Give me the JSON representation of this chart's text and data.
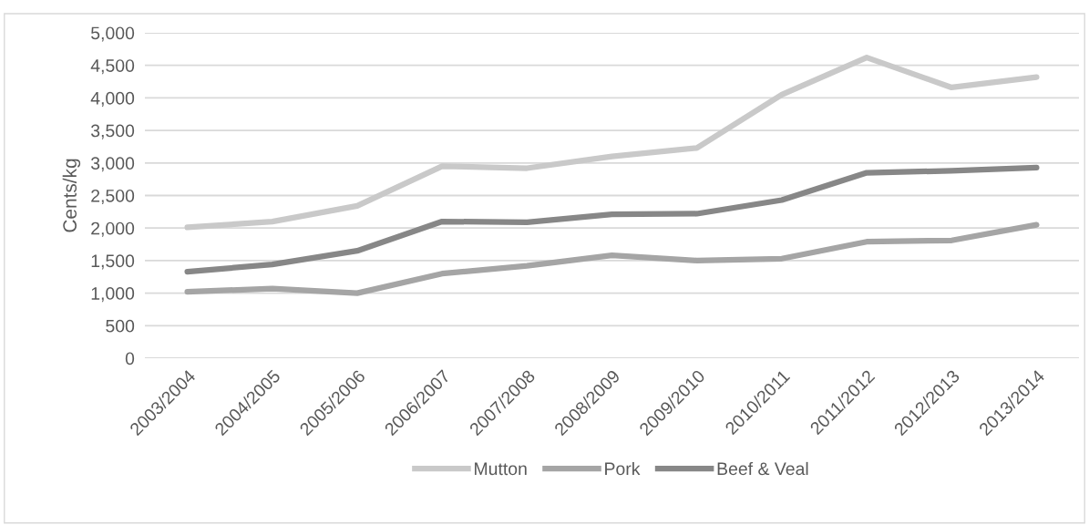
{
  "chart_data": {
    "type": "line",
    "ylabel": "Cents/kg",
    "categories": [
      "2003/2004",
      "2004/2005",
      "2005/2006",
      "2006/2007",
      "2007/2008",
      "2008/2009",
      "2009/2010",
      "2010/2011",
      "2011/2012",
      "2012/2013",
      "2013/2014"
    ],
    "series": [
      {
        "name": "Mutton",
        "color": "#c9c9c9",
        "values": [
          2010,
          2100,
          2340,
          2950,
          2920,
          3100,
          3230,
          4050,
          4620,
          4160,
          4320
        ]
      },
      {
        "name": "Pork",
        "color": "#a5a5a5",
        "values": [
          1020,
          1070,
          1000,
          1300,
          1420,
          1580,
          1500,
          1530,
          1790,
          1810,
          2050
        ]
      },
      {
        "name": "Beef & Veal",
        "color": "#878787",
        "values": [
          1330,
          1440,
          1650,
          2100,
          2090,
          2210,
          2220,
          2430,
          2850,
          2880,
          2930
        ]
      }
    ],
    "ylim": [
      0,
      5000
    ],
    "yticks": [
      {
        "value": 0,
        "label": "0"
      },
      {
        "value": 500,
        "label": "500"
      },
      {
        "value": 1000,
        "label": "1,000"
      },
      {
        "value": 1500,
        "label": "1,500"
      },
      {
        "value": 2000,
        "label": "2,000"
      },
      {
        "value": 2500,
        "label": "2,500"
      },
      {
        "value": 3000,
        "label": "3,000"
      },
      {
        "value": 3500,
        "label": "3,500"
      },
      {
        "value": 4000,
        "label": "4,000"
      },
      {
        "value": 4500,
        "label": "4,500"
      },
      {
        "value": 5000,
        "label": "5,000"
      }
    ],
    "grid": "y",
    "legend": "bottom",
    "marker": "none",
    "line_style": "solid"
  }
}
